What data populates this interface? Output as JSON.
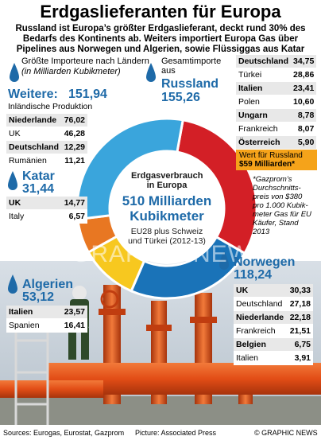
{
  "header": {
    "title": "Erdgaslieferanten für Europa",
    "subtitle": "Russland ist Europa’s größter Erdgaslieferant, deckt rund 30% des Bedarfs des Kontinents ab. Weiters importiert Europa Gas über Pipelines aus Norwegen und Algerien, sowie Flüssiggas aus Katar"
  },
  "legend": {
    "title": "Größte Importeure nach Ländern",
    "unit": "(in Milliarden Kubikmeter)",
    "total_label": "Gesamtimporte aus"
  },
  "chart_data": {
    "type": "pie",
    "center": {
      "label": "Erdgasverbrauch in Europa",
      "value_text": "510 Milliarden Kubikmeter",
      "note": "EU28 plus Schweiz und Türkei (2012-13)"
    },
    "total": 510,
    "unit": "Milliarden Kubikmeter",
    "slices": [
      {
        "name": "Russland",
        "value": 155.26,
        "value_text": "155,26",
        "color": "#d31f26"
      },
      {
        "name": "Norwegen",
        "value": 118.24,
        "value_text": "118,24",
        "color": "#1a73b8"
      },
      {
        "name": "Algerien",
        "value": 53.12,
        "value_text": "53,12",
        "color": "#f7c81f"
      },
      {
        "name": "Katar",
        "value": 31.44,
        "value_text": "31,44",
        "color": "#e87722"
      },
      {
        "name": "Weitere:",
        "value": 151.94,
        "value_text": "151,94",
        "sub": "Inländische Produktion",
        "color": "#3aa5dc"
      }
    ],
    "tables": {
      "russland": [
        {
          "country": "Deutschland",
          "value": "34,75"
        },
        {
          "country": "Türkei",
          "value": "28,86"
        },
        {
          "country": "Italien",
          "value": "23,41"
        },
        {
          "country": "Polen",
          "value": "10,60"
        },
        {
          "country": "Ungarn",
          "value": "8,78"
        },
        {
          "country": "Frankreich",
          "value": "8,07"
        },
        {
          "country": "Österreich",
          "value": "5,90"
        }
      ],
      "weitere": [
        {
          "country": "Niederlande",
          "value": "76,02"
        },
        {
          "country": "UK",
          "value": "46,28"
        },
        {
          "country": "Deutschland",
          "value": "12,29"
        },
        {
          "country": "Rumänien",
          "value": "11,21"
        }
      ],
      "katar": [
        {
          "country": "UK",
          "value": "14,77"
        },
        {
          "country": "Italy",
          "value": "6,57"
        }
      ],
      "algerien": [
        {
          "country": "Italien",
          "value": "23,57"
        },
        {
          "country": "Spanien",
          "value": "16,41"
        }
      ],
      "norwegen": [
        {
          "country": "UK",
          "value": "30,33"
        },
        {
          "country": "Deutschland",
          "value": "27,18"
        },
        {
          "country": "Niederlande",
          "value": "22,18"
        },
        {
          "country": "Frankreich",
          "value": "21,51"
        },
        {
          "country": "Belgien",
          "value": "6,75"
        },
        {
          "country": "Italien",
          "value": "3,91"
        }
      ]
    }
  },
  "wert": {
    "line1": "Wert für Russland",
    "line2": "$59 Milliarden*"
  },
  "gazprom_note": "*Gazprom’s Durchschnitts-preis von $380 pro 1.000 Kubik-meter Gas für EU Käufer, Stand 2013",
  "footer": {
    "sources": "Sources: Eurogas, Eurostat, Gazprom",
    "picture": "Picture: Associated Press",
    "credit": "© GRAPHIC NEWS"
  },
  "watermark": "GRAPHIC NEWS",
  "colors": {
    "accent_blue": "#1e6aa8",
    "accent_red": "#c4161c",
    "pipe_orange": "#e8501c",
    "sky": "#c9d3dc"
  }
}
